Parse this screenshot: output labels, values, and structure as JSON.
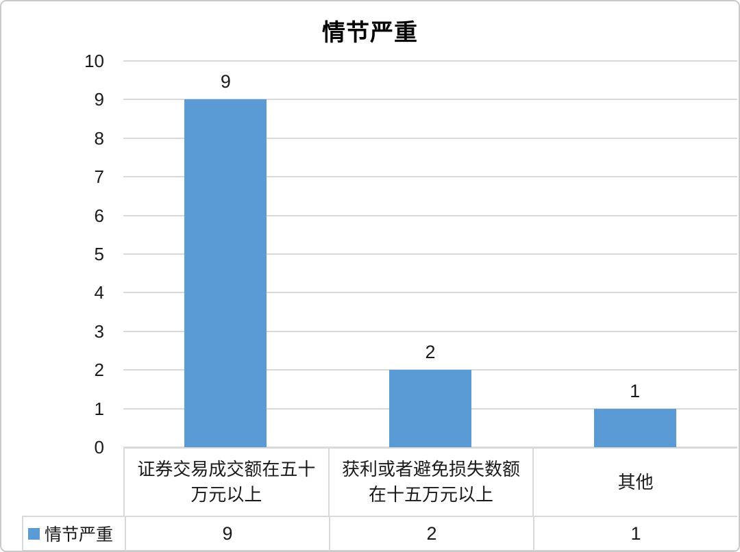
{
  "window": {
    "background": "#ffffff",
    "border_color": "#c9c9c9"
  },
  "chart_data": {
    "type": "bar",
    "title": "情节严重",
    "series_name": "情节严重",
    "categories": [
      "证券交易成交额在五十万元以上",
      "获利或者避免损失数额在十五万元以上",
      "其他"
    ],
    "category_lines": [
      [
        "证券交易成交额在五十",
        "万元以上"
      ],
      [
        "获利或者避免损失数额",
        "在十五万元以上"
      ],
      [
        "其他"
      ]
    ],
    "values": [
      9,
      2,
      1
    ],
    "data_labels": [
      "9",
      "2",
      "1"
    ],
    "table_values": [
      "9",
      "2",
      "1"
    ],
    "xlabel": "",
    "ylabel": "",
    "ylim": [
      0,
      10
    ],
    "yticks": [
      0,
      1,
      2,
      3,
      4,
      5,
      6,
      7,
      8,
      9,
      10
    ],
    "grid": "horizontal",
    "legend_position": "bottom-table",
    "bar_color": "#5b9bd5",
    "gridline_color": "#d9d9d9",
    "text_color": "#1a1a1a"
  }
}
